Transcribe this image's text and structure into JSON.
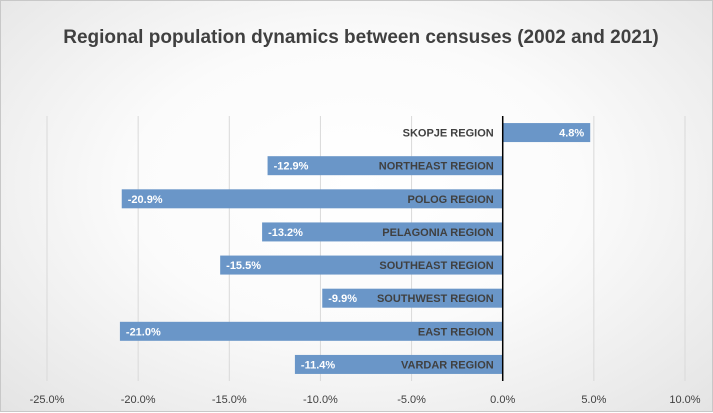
{
  "chart_data": {
    "type": "bar",
    "orientation": "horizontal",
    "title": "Regional population dynamics between censuses (2002 and 2021)",
    "categories": [
      "SKOPJE REGION",
      "NORTHEAST REGION",
      "POLOG REGION",
      "PELAGONIA REGION",
      "SOUTHEAST REGION",
      "SOUTHWEST REGION",
      "EAST REGION",
      "VARDAR REGION"
    ],
    "values": [
      4.8,
      -12.9,
      -20.9,
      -13.2,
      -15.5,
      -9.9,
      -21.0,
      -11.4
    ],
    "data_labels": [
      "4.8%",
      "-12.9%",
      "-20.9%",
      "-13.2%",
      "-15.5%",
      "-9.9%",
      "-21.0%",
      "-11.4%"
    ],
    "x_ticks": [
      -25,
      -20,
      -15,
      -10,
      -5,
      0,
      5,
      10
    ],
    "x_tick_labels": [
      "-25.0%",
      "-20.0%",
      "-15.0%",
      "-10.0%",
      "-5.0%",
      "0.0%",
      "5.0%",
      "10.0%"
    ],
    "xlim": [
      -25,
      10
    ],
    "grid": true,
    "bar_color": "#6a96c8"
  }
}
